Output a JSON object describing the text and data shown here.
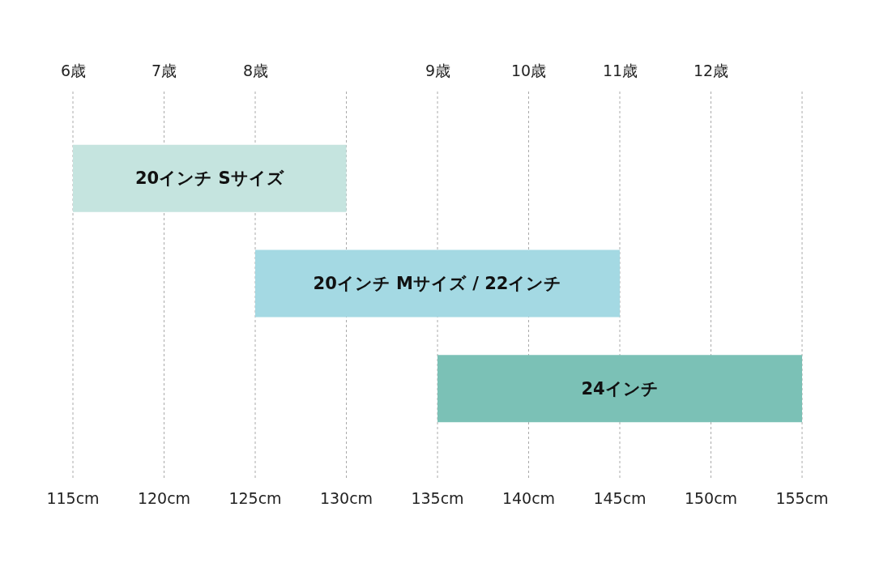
{
  "chart_data": {
    "type": "bar",
    "orientation": "horizontal",
    "categories": [
      "20インチ Sサイズ",
      "20インチ Mサイズ / 22インチ",
      "24インチ"
    ],
    "base": [
      115,
      125,
      135
    ],
    "values": [
      15,
      20,
      20
    ],
    "colors": [
      "#c5e4df",
      "#a4d9e3",
      "#7bc1b6"
    ],
    "xlim": [
      111,
      159
    ],
    "xticks": [
      {
        "value": 115,
        "label": "115cm"
      },
      {
        "value": 120,
        "label": "120cm"
      },
      {
        "value": 125,
        "label": "125cm"
      },
      {
        "value": 130,
        "label": "130cm"
      },
      {
        "value": 135,
        "label": "135cm"
      },
      {
        "value": 140,
        "label": "140cm"
      },
      {
        "value": 145,
        "label": "145cm"
      },
      {
        "value": 150,
        "label": "150cm"
      },
      {
        "value": 155,
        "label": "155cm"
      }
    ],
    "ref_lines": [
      {
        "axis": "x",
        "value": 115,
        "label": "6歳",
        "color": "#aaaaaa",
        "line_style": "dotted"
      },
      {
        "axis": "x",
        "value": 120,
        "label": "7歳",
        "color": "#aaaaaa",
        "line_style": "dotted"
      },
      {
        "axis": "x",
        "value": 125,
        "label": "8歳",
        "color": "#aaaaaa",
        "line_style": "dotted"
      },
      {
        "axis": "x",
        "value": 130,
        "color": "#aaaaaa",
        "line_style": "dotted"
      },
      {
        "axis": "x",
        "value": 135,
        "label": "9歳",
        "color": "#aaaaaa",
        "line_style": "dotted"
      },
      {
        "axis": "x",
        "value": 140,
        "label": "10歳",
        "color": "#aaaaaa",
        "line_style": "dotted"
      },
      {
        "axis": "x",
        "value": 145,
        "label": "11歳",
        "color": "#aaaaaa",
        "line_style": "dotted"
      },
      {
        "axis": "x",
        "value": 150,
        "label": "12歳",
        "color": "#aaaaaa",
        "line_style": "dotted"
      },
      {
        "axis": "x",
        "value": 155,
        "color": "#aaaaaa",
        "line_style": "dotted"
      }
    ],
    "grid": false,
    "tick_labels": "x"
  }
}
